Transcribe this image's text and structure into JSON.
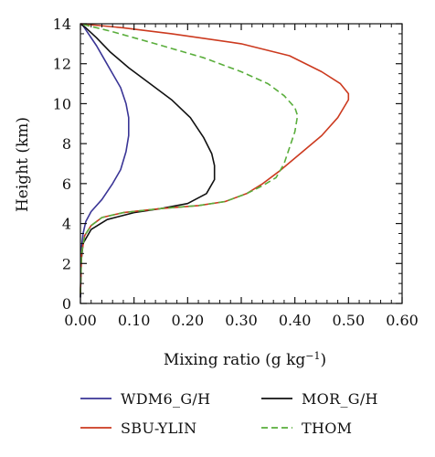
{
  "chart_data": {
    "type": "line",
    "title": "",
    "xlabel": "Mixing ratio (g kg",
    "xlabel_sup": "−1",
    "xlabel_close": ")",
    "ylabel": "Height (km)",
    "xlim": [
      0,
      0.6
    ],
    "ylim": [
      0,
      14
    ],
    "x_ticks": [
      "0.00",
      "0.10",
      "0.20",
      "0.30",
      "0.40",
      "0.50",
      "0.60"
    ],
    "y_ticks": [
      "0",
      "2",
      "4",
      "6",
      "8",
      "10",
      "12",
      "14"
    ],
    "grid": false,
    "legend_position": "bottom",
    "series": [
      {
        "name": "WDM6_G/H",
        "color": "#3a3596",
        "dash": "solid",
        "points": [
          [
            0.0,
            0.3
          ],
          [
            0.001,
            1.5
          ],
          [
            0.002,
            2.8
          ],
          [
            0.005,
            3.5
          ],
          [
            0.01,
            4.1
          ],
          [
            0.02,
            4.6
          ],
          [
            0.04,
            5.2
          ],
          [
            0.06,
            6.0
          ],
          [
            0.075,
            6.7
          ],
          [
            0.085,
            7.6
          ],
          [
            0.09,
            8.4
          ],
          [
            0.09,
            9.3
          ],
          [
            0.085,
            10.0
          ],
          [
            0.075,
            10.8
          ],
          [
            0.06,
            11.5
          ],
          [
            0.045,
            12.2
          ],
          [
            0.03,
            12.9
          ],
          [
            0.015,
            13.5
          ],
          [
            0.005,
            13.9
          ],
          [
            0.0,
            14.0
          ]
        ]
      },
      {
        "name": "MOR_G/H",
        "color": "#111111",
        "dash": "solid",
        "points": [
          [
            0.0,
            0.3
          ],
          [
            0.001,
            2.0
          ],
          [
            0.005,
            3.0
          ],
          [
            0.02,
            3.7
          ],
          [
            0.05,
            4.2
          ],
          [
            0.1,
            4.55
          ],
          [
            0.15,
            4.75
          ],
          [
            0.2,
            5.0
          ],
          [
            0.235,
            5.5
          ],
          [
            0.25,
            6.2
          ],
          [
            0.25,
            6.9
          ],
          [
            0.245,
            7.5
          ],
          [
            0.23,
            8.3
          ],
          [
            0.205,
            9.3
          ],
          [
            0.17,
            10.2
          ],
          [
            0.13,
            11.0
          ],
          [
            0.09,
            11.8
          ],
          [
            0.055,
            12.6
          ],
          [
            0.03,
            13.3
          ],
          [
            0.01,
            13.8
          ],
          [
            0.0,
            14.0
          ]
        ]
      },
      {
        "name": "SBU-YLIN",
        "color": "#cc3a1f",
        "dash": "solid",
        "points": [
          [
            0.0,
            0.5
          ],
          [
            0.002,
            2.5
          ],
          [
            0.008,
            3.4
          ],
          [
            0.02,
            3.9
          ],
          [
            0.04,
            4.3
          ],
          [
            0.08,
            4.55
          ],
          [
            0.15,
            4.75
          ],
          [
            0.22,
            4.9
          ],
          [
            0.27,
            5.1
          ],
          [
            0.31,
            5.5
          ],
          [
            0.34,
            6.0
          ],
          [
            0.37,
            6.6
          ],
          [
            0.41,
            7.5
          ],
          [
            0.45,
            8.4
          ],
          [
            0.48,
            9.3
          ],
          [
            0.5,
            10.2
          ],
          [
            0.5,
            10.5
          ],
          [
            0.485,
            11.0
          ],
          [
            0.45,
            11.6
          ],
          [
            0.39,
            12.4
          ],
          [
            0.3,
            13.0
          ],
          [
            0.17,
            13.5
          ],
          [
            0.08,
            13.8
          ],
          [
            0.0,
            14.0
          ]
        ]
      },
      {
        "name": "THOM",
        "color": "#5aae3c",
        "dash": "dashed",
        "points": [
          [
            0.0,
            0.5
          ],
          [
            0.002,
            2.5
          ],
          [
            0.008,
            3.4
          ],
          [
            0.02,
            3.9
          ],
          [
            0.04,
            4.3
          ],
          [
            0.08,
            4.55
          ],
          [
            0.15,
            4.75
          ],
          [
            0.22,
            4.9
          ],
          [
            0.27,
            5.1
          ],
          [
            0.31,
            5.5
          ],
          [
            0.34,
            5.9
          ],
          [
            0.365,
            6.3
          ],
          [
            0.38,
            7.0
          ],
          [
            0.39,
            7.8
          ],
          [
            0.4,
            8.6
          ],
          [
            0.405,
            9.4
          ],
          [
            0.4,
            9.8
          ],
          [
            0.38,
            10.4
          ],
          [
            0.35,
            11.0
          ],
          [
            0.3,
            11.6
          ],
          [
            0.23,
            12.3
          ],
          [
            0.14,
            13.0
          ],
          [
            0.06,
            13.6
          ],
          [
            0.0,
            14.0
          ]
        ]
      }
    ]
  }
}
